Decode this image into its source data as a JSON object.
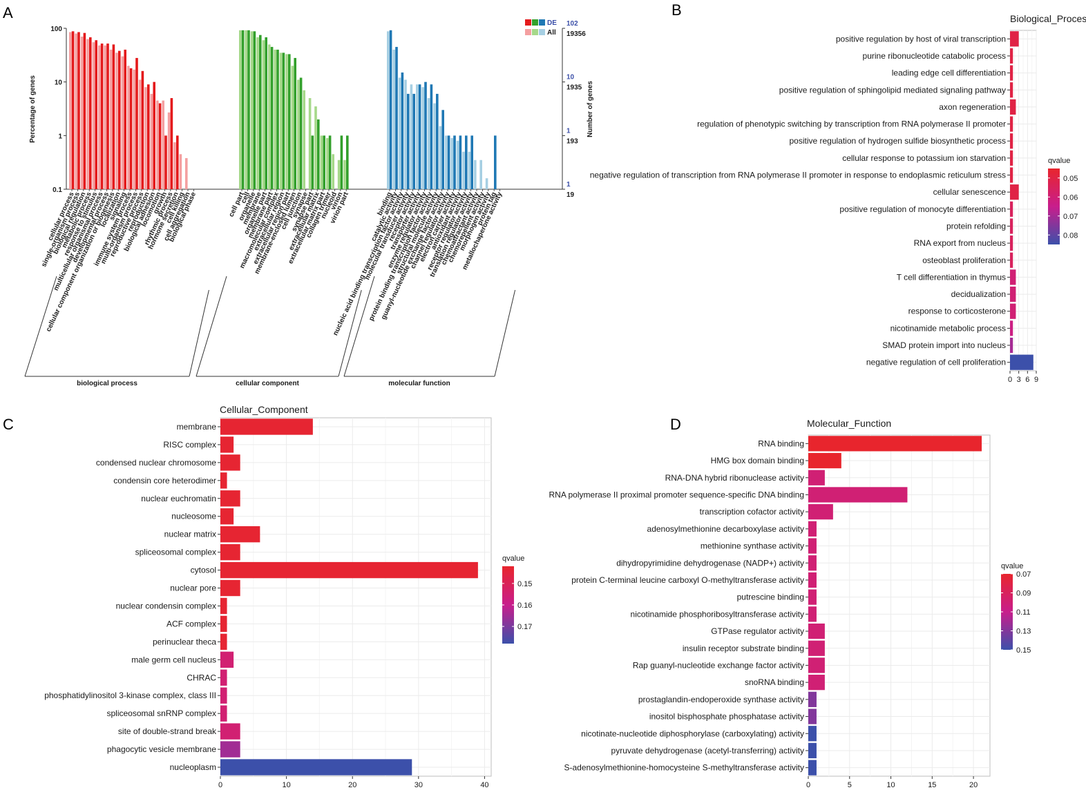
{
  "panel_labels": [
    "A",
    "B",
    "C",
    "D"
  ],
  "chart_data": [
    {
      "panel": "A",
      "type": "bar",
      "title": "",
      "ylabel": "Percentage of genes",
      "y2label": "Number of genes",
      "yscale": "log",
      "ylim": [
        0.1,
        100
      ],
      "yticks": [
        "0.1",
        "1",
        "10",
        "100"
      ],
      "right_axis": {
        "de_ticks": [
          "1",
          "1",
          "10",
          "102"
        ],
        "all_ticks": [
          "19",
          "193",
          "1935",
          "19356"
        ],
        "de_color": "#3b4fa8",
        "all_color": "#1a1a1a"
      },
      "legend": {
        "de_label": "DE",
        "all_label": "All"
      },
      "groups": [
        {
          "name": "biological process",
          "colors": {
            "de": "#e41a1c",
            "all": "#f4a0a1"
          },
          "categories": [
            "cellular process",
            "single-organism process",
            "biological regulation",
            "metabolic process",
            "response to stimulus",
            "multicellular organismal process",
            "developmental process",
            "cellular component organization or biogenesis",
            "localization",
            "signaling",
            "immune system process",
            "multi-organism process",
            "reproductive process",
            "reproduction",
            "biological adhesion",
            "locomotion",
            "growth",
            "rhythmic process",
            "hormone secretion",
            "cell killing",
            "cell aggregation",
            "biological phase"
          ],
          "de": [
            88,
            85,
            82,
            68,
            60,
            52,
            52,
            50,
            38,
            40,
            18,
            28,
            16,
            9,
            10,
            4,
            1,
            5,
            1,
            0,
            0,
            0
          ],
          "all": [
            85,
            80,
            70,
            63,
            55,
            48,
            48,
            40,
            35,
            30,
            20,
            17,
            11,
            8,
            6,
            4.5,
            4.5,
            2.7,
            0.75,
            0.45,
            0.38,
            0
          ]
        },
        {
          "name": "cellular component",
          "colors": {
            "de": "#33a02c",
            "all": "#a6d88a"
          },
          "categories": [
            "cell part",
            "cell",
            "organelle",
            "membrane",
            "organelle part",
            "membrane part",
            "macromolecular complex",
            "extracellular region",
            "extracellular region part",
            "membrane-enclosed lumen",
            "cell junction",
            "synapse",
            "synapse part",
            "extracellular matrix",
            "extracellular matrix part",
            "collagen trimer",
            "nucleoid",
            "virion",
            "virion part"
          ],
          "de": [
            92,
            92,
            88,
            75,
            68,
            45,
            40,
            35,
            33,
            28,
            12,
            0,
            1,
            2,
            1,
            1,
            0,
            1,
            1
          ],
          "all": [
            92,
            92,
            88,
            68,
            60,
            50,
            40,
            35,
            33,
            20,
            11,
            7,
            5,
            3.5,
            1,
            0.9,
            0.45,
            0.35,
            0.35
          ]
        },
        {
          "name": "molecular function",
          "colors": {
            "de": "#1f78b4",
            "all": "#a6cfe3"
          },
          "categories": [
            "binding",
            "catalytic activity",
            "nucleic acid binding transcription factor activity",
            "molecular transducer activity",
            "receptor activity",
            "transporter activity",
            "enzyme regulator activity",
            "protein binding transcription factor activity",
            "structural molecule activity",
            "guanyl-nucleotide exchange factor activity",
            "channel regulator activity",
            "electron carrier activity",
            "antioxidant activity",
            "receptor regulator activity",
            "translation regulator activity",
            "chemoattractant activity",
            "chemorepellent activity",
            "morphogen activity",
            "protein tag",
            "metallochaperone activity"
          ],
          "de": [
            92,
            45,
            15,
            6,
            6,
            9,
            10,
            9,
            6,
            3,
            1,
            1,
            1,
            1,
            1,
            0,
            0,
            0,
            1,
            0
          ],
          "all": [
            88,
            40,
            12,
            11,
            9,
            9,
            8,
            5,
            4,
            1.5,
            1,
            0.9,
            0.8,
            0.5,
            0.5,
            0.35,
            0.35,
            0.16,
            0,
            0
          ]
        }
      ]
    },
    {
      "panel": "B",
      "type": "bar",
      "orientation": "horizontal",
      "title": "Biological_Process",
      "categories": [
        "positive regulation by host of viral transcription",
        "purine ribonucleotide catabolic process",
        "leading edge cell differentiation",
        "positive regulation of sphingolipid mediated signaling pathway",
        "axon regeneration",
        "regulation of phenotypic switching by transcription from RNA polymerase II promoter",
        "positive regulation of hydrogen sulfide biosynthetic process",
        "cellular response to potassium ion starvation",
        "negative regulation of transcription from RNA polymerase II promoter in response to endoplasmic reticulum stress",
        "cellular senescence",
        "positive regulation of monocyte differentiation",
        "protein refolding",
        "RNA export from nucleus",
        "osteoblast proliferation",
        "T cell differentiation in thymus",
        "decidualization",
        "response to corticosterone",
        "nicotinamide metabolic process",
        "SMAD protein import into nucleus",
        "negative regulation of cell proliferation"
      ],
      "values": [
        3,
        1,
        1,
        1,
        2,
        1,
        1,
        1,
        1,
        3,
        1,
        1,
        1,
        1,
        2,
        2,
        2,
        1,
        1,
        8
      ],
      "qvalues": [
        0.05,
        0.05,
        0.05,
        0.05,
        0.05,
        0.05,
        0.05,
        0.05,
        0.05,
        0.05,
        0.055,
        0.055,
        0.055,
        0.055,
        0.06,
        0.06,
        0.06,
        0.063,
        0.07,
        0.085
      ],
      "xticks": [
        "0",
        "3",
        "6",
        "9"
      ],
      "xlim": [
        0,
        9
      ],
      "legend": {
        "title": "qvalue",
        "ticks": [
          "0.05",
          "0.06",
          "0.07",
          "0.08"
        ],
        "range": [
          0.045,
          0.085
        ]
      }
    },
    {
      "panel": "C",
      "type": "bar",
      "orientation": "horizontal",
      "title": "Cellular_Component",
      "categories": [
        "membrane",
        "RISC complex",
        "condensed nuclear chromosome",
        "condensin core heterodimer",
        "nuclear euchromatin",
        "nucleosome",
        "nuclear matrix",
        "spliceosomal complex",
        "cytosol",
        "nuclear pore",
        "nuclear condensin complex",
        "ACF complex",
        "perinuclear theca",
        "male germ cell nucleus",
        "CHRAC",
        "phosphatidylinositol 3-kinase complex, class III",
        "spliceosomal snRNP complex",
        "site of double-strand break",
        "phagocytic vesicle membrane",
        "nucleoplasm"
      ],
      "values": [
        14,
        2,
        3,
        1,
        3,
        2,
        6,
        3,
        39,
        3,
        1,
        1,
        1,
        2,
        1,
        1,
        1,
        3,
        3,
        29
      ],
      "qvalues": [
        0.143,
        0.143,
        0.143,
        0.143,
        0.143,
        0.143,
        0.143,
        0.143,
        0.143,
        0.143,
        0.143,
        0.143,
        0.143,
        0.155,
        0.155,
        0.155,
        0.155,
        0.155,
        0.165,
        0.178
      ],
      "xticks": [
        "0",
        "10",
        "20",
        "30",
        "40"
      ],
      "xlim": [
        0,
        41
      ],
      "legend": {
        "title": "qvalue",
        "ticks": [
          "0.15",
          "0.16",
          "0.17"
        ],
        "range": [
          0.142,
          0.178
        ]
      }
    },
    {
      "panel": "D",
      "type": "bar",
      "orientation": "horizontal",
      "title": "Molecular_Function",
      "categories": [
        "RNA binding",
        "HMG box domain binding",
        "RNA-DNA hybrid ribonuclease activity",
        "RNA polymerase II proximal promoter sequence-specific DNA binding",
        "transcription cofactor activity",
        "adenosylmethionine decarboxylase activity",
        "methionine synthase activity",
        "dihydropyrimidine dehydrogenase (NADP+) activity",
        "protein C-terminal leucine carboxyl O-methyltransferase activity",
        "putrescine binding",
        "nicotinamide phosphoribosyltransferase activity",
        "GTPase regulator activity",
        "insulin receptor substrate binding",
        "Rap guanyl-nucleotide exchange factor activity",
        "snoRNA binding",
        "prostaglandin-endoperoxide synthase activity",
        "inositol bisphosphate phosphatase activity",
        "nicotinate-nucleotide diphosphorylase (carboxylating) activity",
        "pyruvate dehydrogenase (acetyl-transferring) activity",
        "S-adenosylmethionine-homocysteine S-methyltransferase activity"
      ],
      "values": [
        21,
        4,
        2,
        12,
        3,
        1,
        1,
        1,
        1,
        1,
        1,
        2,
        2,
        2,
        2,
        1,
        1,
        1,
        1,
        1
      ],
      "qvalues": [
        0.07,
        0.07,
        0.1,
        0.1,
        0.1,
        0.1,
        0.1,
        0.1,
        0.1,
        0.1,
        0.1,
        0.1,
        0.1,
        0.1,
        0.1,
        0.13,
        0.13,
        0.15,
        0.15,
        0.15
      ],
      "xticks": [
        "0",
        "5",
        "10",
        "15",
        "20"
      ],
      "xlim": [
        0,
        22
      ],
      "legend": {
        "title": "qvalue",
        "ticks": [
          "0.07",
          "0.09",
          "0.11",
          "0.13",
          "0.15"
        ],
        "range": [
          0.07,
          0.15
        ]
      }
    }
  ]
}
